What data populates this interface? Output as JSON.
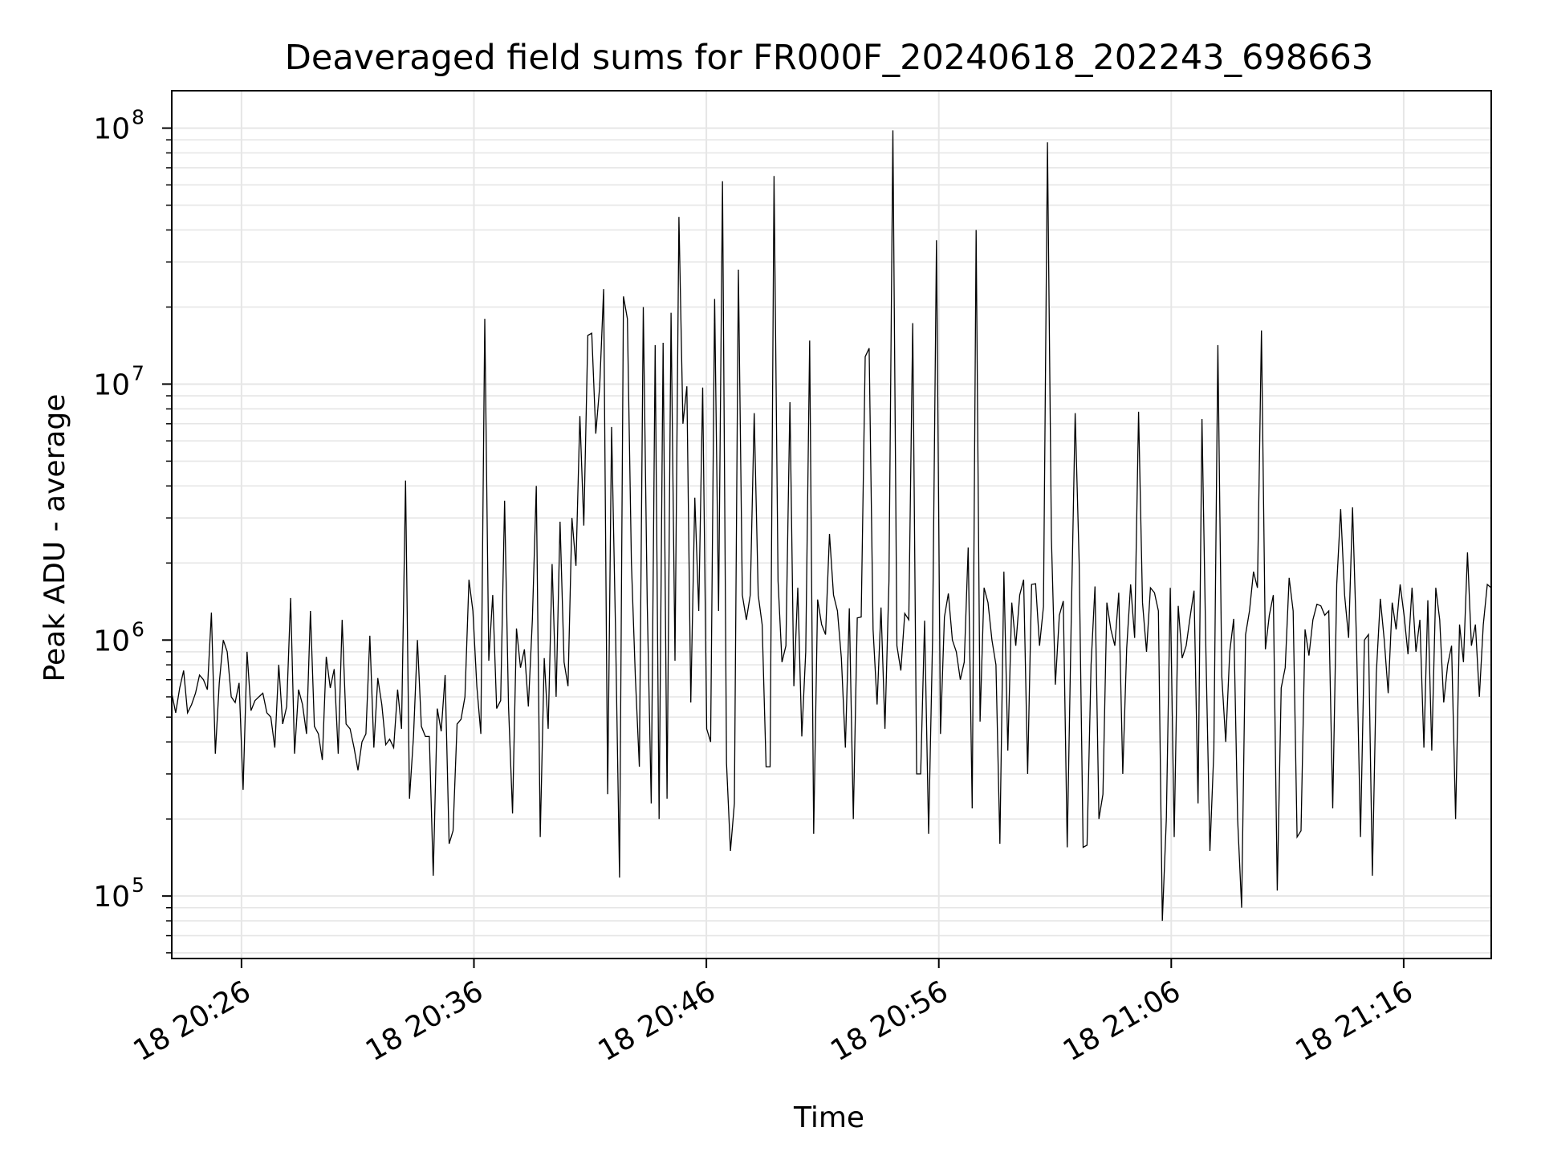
{
  "chart_data": {
    "type": "line",
    "title": "Deaveraged field sums for FR000F_20240618_202243_698663",
    "xlabel": "Time",
    "ylabel": "Peak ADU - average",
    "yscale": "log",
    "ylim": [
      57000,
      140000000
    ],
    "xlim": [
      "2024-06-18 20:23:00",
      "2024-06-18 21:19:46"
    ],
    "grid": true,
    "colors": {
      "line": "#000000",
      "grid": "#e6e6e6",
      "axes": "#000000",
      "background": "#ffffff"
    },
    "x_ticks": [
      {
        "time": "2024-06-18 20:26:00",
        "label": "18 20:26"
      },
      {
        "time": "2024-06-18 20:36:00",
        "label": "18 20:36"
      },
      {
        "time": "2024-06-18 20:46:00",
        "label": "18 20:46"
      },
      {
        "time": "2024-06-18 20:56:00",
        "label": "18 20:56"
      },
      {
        "time": "2024-06-18 21:06:00",
        "label": "18 21:06"
      },
      {
        "time": "2024-06-18 21:16:00",
        "label": "18 21:16"
      }
    ],
    "y_ticks": [
      {
        "value": 100000,
        "base": "10",
        "exp": "5"
      },
      {
        "value": 1000000,
        "base": "10",
        "exp": "6"
      },
      {
        "value": 10000000,
        "base": "10",
        "exp": "7"
      },
      {
        "value": 100000000,
        "base": "10",
        "exp": "8"
      }
    ],
    "x_start": "2024-06-18 20:23:00",
    "x_end": "2024-06-18 21:19:46",
    "y": [
      620000,
      520000,
      650000,
      760000,
      520000,
      560000,
      620000,
      730000,
      700000,
      640000,
      1280000,
      360000,
      680000,
      1000000,
      900000,
      600000,
      570000,
      680000,
      260000,
      900000,
      530000,
      580000,
      600000,
      620000,
      520000,
      500000,
      380000,
      800000,
      470000,
      550000,
      1460000,
      360000,
      640000,
      560000,
      430000,
      1300000,
      460000,
      430000,
      340000,
      860000,
      650000,
      770000,
      360000,
      1200000,
      470000,
      450000,
      380000,
      310000,
      400000,
      430000,
      1040000,
      380000,
      710000,
      560000,
      390000,
      410000,
      380000,
      640000,
      450000,
      4200000,
      240000,
      420000,
      1000000,
      460000,
      420000,
      420000,
      120000,
      540000,
      440000,
      730000,
      160000,
      180000,
      470000,
      490000,
      600000,
      1720000,
      1300000,
      660000,
      430000,
      18000000,
      830000,
      1500000,
      540000,
      580000,
      3500000,
      550000,
      210000,
      1110000,
      780000,
      920000,
      550000,
      1200000,
      4000000,
      170000,
      850000,
      450000,
      1980000,
      600000,
      2900000,
      820000,
      660000,
      3000000,
      1950000,
      7500000,
      2800000,
      15500000,
      15800000,
      6400000,
      9800000,
      23500000,
      250000,
      6800000,
      1100000,
      118000,
      22000000,
      18000000,
      2000000,
      720000,
      320000,
      20000000,
      1400000,
      230000,
      14200000,
      200000,
      14500000,
      240000,
      19000000,
      830000,
      45000000,
      7000000,
      9800000,
      570000,
      3600000,
      1300000,
      9700000,
      450000,
      400000,
      21500000,
      1300000,
      62000000,
      330000,
      150000,
      230000,
      28000000,
      1500000,
      1200000,
      1500000,
      7700000,
      1500000,
      1150000,
      320000,
      320000,
      65000000,
      1700000,
      820000,
      950000,
      8500000,
      660000,
      1600000,
      420000,
      900000,
      14800000,
      175000,
      1440000,
      1150000,
      1050000,
      2600000,
      1500000,
      1300000,
      850000,
      380000,
      1330000,
      200000,
      1220000,
      1230000,
      12800000,
      13800000,
      1100000,
      560000,
      1340000,
      450000,
      1700000,
      98000000,
      950000,
      760000,
      1270000,
      1200000,
      17300000,
      300000,
      300000,
      1190000,
      175000,
      1000000,
      36500000,
      430000,
      1230000,
      1520000,
      1000000,
      900000,
      700000,
      820000,
      2300000,
      220000,
      40000000,
      480000,
      1600000,
      1400000,
      1000000,
      800000,
      160000,
      1850000,
      370000,
      1400000,
      950000,
      1500000,
      1720000,
      300000,
      1650000,
      1660000,
      950000,
      1350000,
      88000000,
      2500000,
      670000,
      1250000,
      1420000,
      155000,
      1200000,
      7700000,
      2000000,
      155000,
      158000,
      800000,
      1620000,
      200000,
      250000,
      1400000,
      1100000,
      950000,
      1530000,
      300000,
      930000,
      1650000,
      1020000,
      7800000,
      1400000,
      900000,
      1600000,
      1530000,
      1300000,
      80000,
      200000,
      1600000,
      170000,
      1360000,
      850000,
      950000,
      1230000,
      1560000,
      230000,
      7300000,
      900000,
      150000,
      370000,
      14200000,
      720000,
      400000,
      900000,
      1210000,
      200000,
      90000,
      1050000,
      1300000,
      1850000,
      1600000,
      16200000,
      920000,
      1250000,
      1500000,
      105000,
      650000,
      780000,
      1750000,
      1300000,
      170000,
      180000,
      1100000,
      870000,
      1200000,
      1380000,
      1360000,
      1250000,
      1300000,
      220000,
      1650000,
      3250000,
      1500000,
      1020000,
      3300000,
      1000000,
      170000,
      1000000,
      1050000,
      120000,
      740000,
      1450000,
      1000000,
      620000,
      1400000,
      1100000,
      1650000,
      1250000,
      880000,
      1600000,
      900000,
      1200000,
      380000,
      1430000,
      370000,
      1600000,
      1200000,
      570000,
      800000,
      950000,
      200000,
      1150000,
      820000,
      2200000,
      950000,
      1150000,
      600000,
      1150000,
      1650000,
      1600000
    ]
  }
}
